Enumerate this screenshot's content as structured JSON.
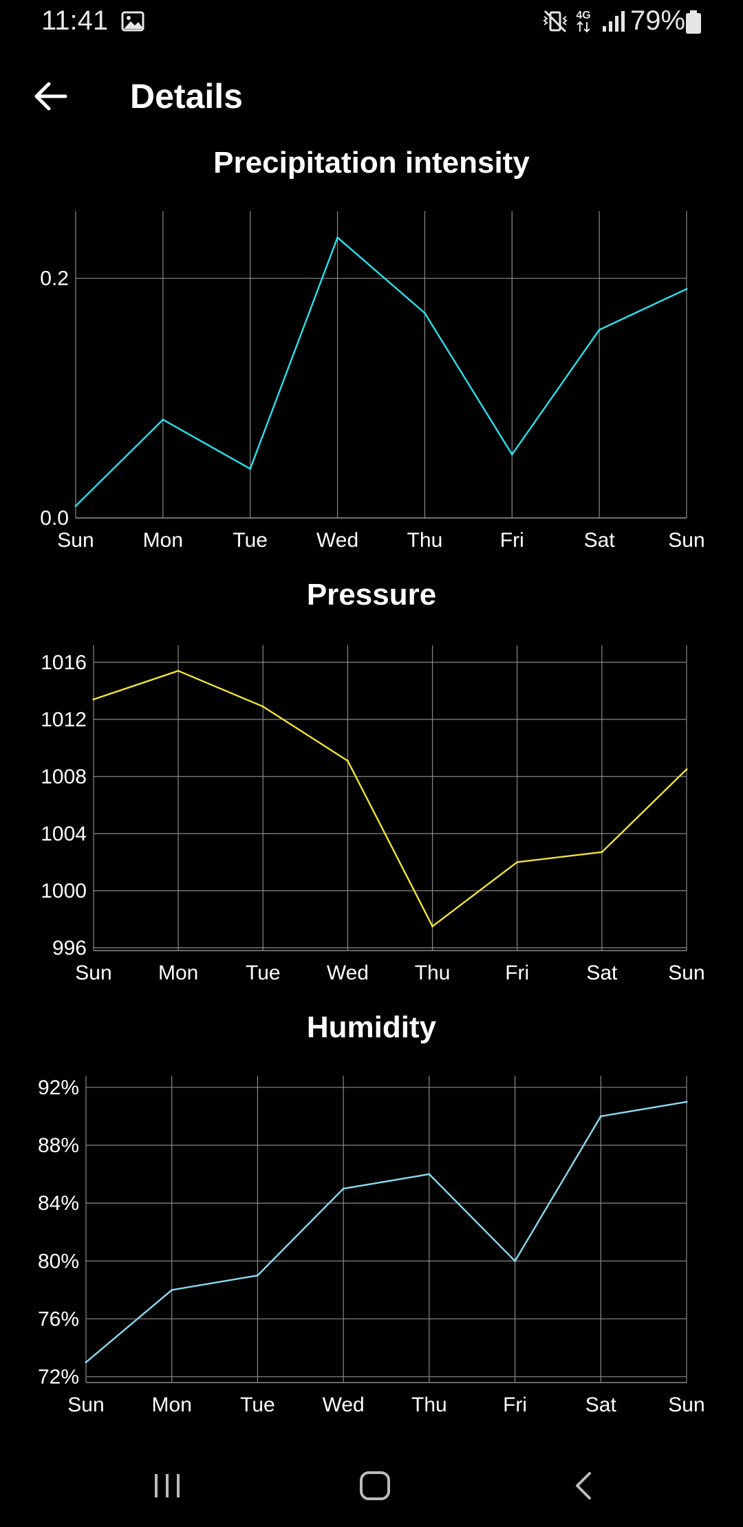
{
  "status_bar": {
    "time": "11:41",
    "battery_percent": "79%",
    "icons": [
      "gallery-icon",
      "vibrate-mute-icon",
      "4g-data-icon",
      "signal-icon",
      "battery-icon"
    ]
  },
  "app_bar": {
    "title": "Details",
    "back_icon": "arrow-left-icon"
  },
  "charts": {
    "precipitation": {
      "title": "Precipitation intensity"
    },
    "pressure": {
      "title": "Pressure"
    },
    "humidity": {
      "title": "Humidity"
    }
  },
  "chart_data": [
    {
      "type": "line",
      "title": "Precipitation intensity",
      "categories": [
        "Sun",
        "Mon",
        "Tue",
        "Wed",
        "Thu",
        "Fri",
        "Sat",
        "Sun"
      ],
      "values": [
        0.01,
        0.082,
        0.041,
        0.234,
        0.171,
        0.053,
        0.157,
        0.191
      ],
      "ylim": [
        0,
        0.256
      ],
      "yticks": [
        0.0,
        0.2
      ],
      "ytick_labels": [
        "0.0",
        "0.2"
      ],
      "grid": true,
      "color": "#27e3f0"
    },
    {
      "type": "line",
      "title": "Pressure",
      "categories": [
        "Sun",
        "Mon",
        "Tue",
        "Wed",
        "Thu",
        "Fri",
        "Sat",
        "Sun"
      ],
      "values": [
        1013.4,
        1015.4,
        1012.9,
        1009.1,
        997.5,
        1002.0,
        1002.7,
        1008.5
      ],
      "ylim": [
        995.8,
        1017.2
      ],
      "yticks": [
        996,
        1000,
        1004,
        1008,
        1012,
        1016
      ],
      "ytick_labels": [
        "996",
        "1000",
        "1004",
        "1008",
        "1012",
        "1016"
      ],
      "grid": true,
      "color": "#f2e533"
    },
    {
      "type": "line",
      "title": "Humidity",
      "categories": [
        "Sun",
        "Mon",
        "Tue",
        "Wed",
        "Thu",
        "Fri",
        "Sat",
        "Sun"
      ],
      "values": [
        73,
        78,
        79,
        85,
        86,
        80,
        90,
        91
      ],
      "ylim": [
        71.6,
        92.8
      ],
      "yticks": [
        72,
        76,
        80,
        84,
        88,
        92
      ],
      "ytick_labels": [
        "72%",
        "76%",
        "80%",
        "84%",
        "88%",
        "92%"
      ],
      "grid": true,
      "color": "#8adcf2"
    }
  ]
}
